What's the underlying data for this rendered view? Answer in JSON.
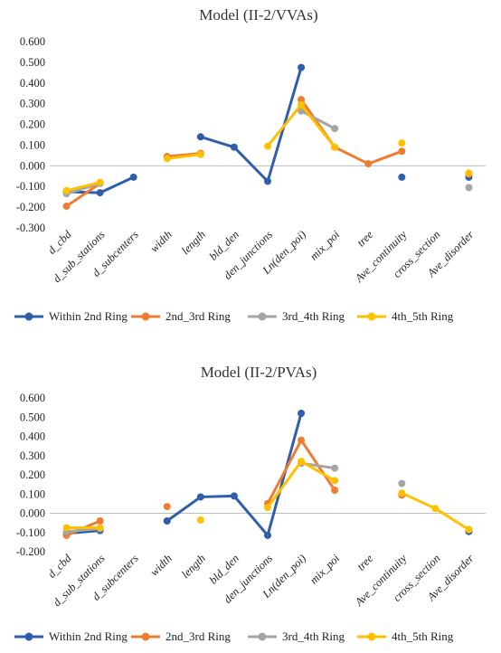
{
  "chart_data": [
    {
      "type": "line",
      "title": "Model (II-2/VVAs)",
      "categories": [
        "d_cbd",
        "d_sub_stations",
        "d_subcenters",
        "width",
        "length",
        "bld_den",
        "den_junctions",
        "Ln(den_poi)",
        "mix_poi",
        "tree",
        "Ave_continuity",
        "cross_section",
        "Ave_disorder"
      ],
      "y_ticks": [
        "0.600",
        "0.500",
        "0.400",
        "0.300",
        "0.200",
        "0.100",
        "0.000",
        "-0.100",
        "-0.200",
        "-0.300"
      ],
      "ylim": [
        -0.3,
        0.6
      ],
      "legend_position": "bottom",
      "grid": false,
      "series": [
        {
          "name": "Within 2nd Ring",
          "color": "#2e5fa8",
          "values": [
            -0.125,
            -0.13,
            -0.055,
            null,
            0.14,
            0.09,
            -0.075,
            0.475,
            null,
            null,
            -0.055,
            null,
            -0.055
          ]
        },
        {
          "name": "2nd_3rd Ring",
          "color": "#ed7d31",
          "values": [
            -0.195,
            -0.085,
            null,
            0.045,
            0.06,
            null,
            null,
            0.32,
            0.09,
            0.01,
            0.07,
            null,
            -0.04
          ]
        },
        {
          "name": "3rd_4th Ring",
          "color": "#a5a5a5",
          "values": [
            -0.135,
            -0.085,
            null,
            null,
            null,
            null,
            null,
            0.265,
            0.18,
            null,
            null,
            null,
            -0.105
          ]
        },
        {
          "name": "4th_5th Ring",
          "color": "#ffc000",
          "values": [
            -0.12,
            -0.08,
            null,
            0.035,
            0.055,
            null,
            0.095,
            0.295,
            0.09,
            null,
            0.11,
            null,
            -0.035
          ]
        }
      ]
    },
    {
      "type": "line",
      "title": "Model (II-2/PVAs)",
      "categories": [
        "d_cbd",
        "d_sub_stations",
        "d_subcenters",
        "width",
        "length",
        "bld_den",
        "den_junctions",
        "Ln(den_poi)",
        "mix_poi",
        "tree",
        "Ave_continuity",
        "cross_section",
        "Ave_disorder"
      ],
      "y_ticks": [
        "0.600",
        "0.500",
        "0.400",
        "0.300",
        "0.200",
        "0.100",
        "0.000",
        "-0.100",
        "-0.200"
      ],
      "ylim": [
        -0.2,
        0.6
      ],
      "legend_position": "bottom",
      "grid": false,
      "series": [
        {
          "name": "Within 2nd Ring",
          "color": "#2e5fa8",
          "values": [
            -0.105,
            -0.09,
            null,
            -0.04,
            0.085,
            0.09,
            -0.115,
            0.52,
            null,
            null,
            null,
            null,
            -0.095
          ]
        },
        {
          "name": "2nd_3rd Ring",
          "color": "#ed7d31",
          "values": [
            -0.115,
            -0.04,
            null,
            0.035,
            null,
            null,
            0.05,
            0.38,
            0.12,
            null,
            0.095,
            null,
            null
          ]
        },
        {
          "name": "3rd_4th Ring",
          "color": "#a5a5a5",
          "values": [
            -0.095,
            -0.08,
            null,
            null,
            null,
            null,
            null,
            0.26,
            0.235,
            null,
            0.155,
            null,
            -0.085
          ]
        },
        {
          "name": "4th_5th Ring",
          "color": "#ffc000",
          "values": [
            -0.075,
            -0.075,
            null,
            null,
            -0.035,
            null,
            0.03,
            0.27,
            0.17,
            null,
            0.105,
            0.025,
            -0.085
          ]
        }
      ]
    }
  ]
}
